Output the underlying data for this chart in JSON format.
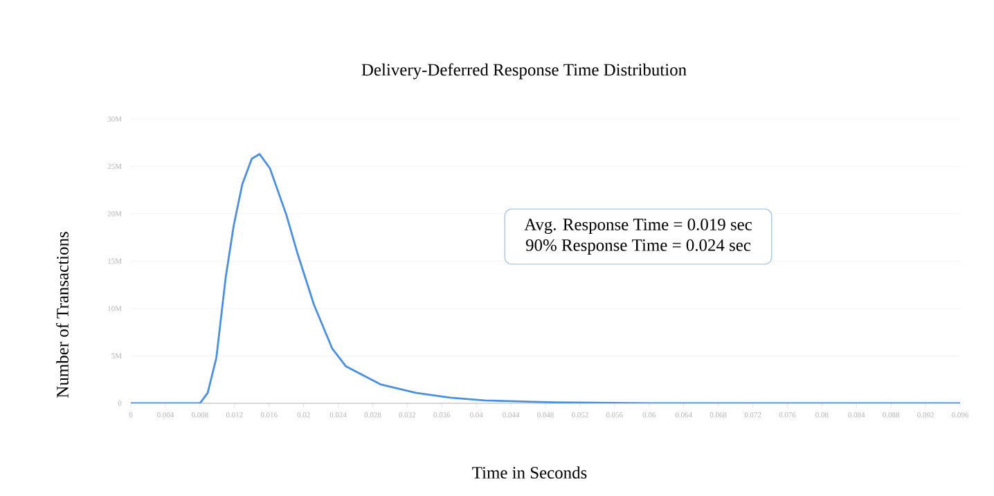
{
  "chart_data": {
    "type": "line",
    "title": "Delivery-Deferred Response Time Distribution",
    "xlabel": "Time in Seconds",
    "ylabel": "Number of Transactions",
    "annotations": [
      "Avg. Response Time = 0.019 sec",
      "90% Response Time = 0.024 sec"
    ],
    "x": [
      0,
      0.004,
      0.008,
      0.0089,
      0.0099,
      0.011,
      0.0119,
      0.0129,
      0.014,
      0.0149,
      0.0161,
      0.018,
      0.0193,
      0.0212,
      0.0233,
      0.0249,
      0.0289,
      0.033,
      0.037,
      0.041,
      0.049,
      0.06,
      0.08,
      0.096
    ],
    "series": [
      {
        "color": "#4a90e2",
        "values": [
          0,
          0,
          0,
          1100000,
          4800000,
          13400000,
          18700000,
          23100000,
          25800000,
          26300000,
          24800000,
          19900000,
          15800000,
          10400000,
          5800000,
          3900000,
          2000000,
          1100000,
          600000,
          300000,
          100000,
          0,
          0,
          0
        ]
      }
    ],
    "xlim": [
      0,
      0.096
    ],
    "ylim": [
      0,
      30000000
    ],
    "xticks": [
      0,
      0.004,
      0.008,
      0.012,
      0.016,
      0.02,
      0.024,
      0.028,
      0.032,
      0.036,
      0.04,
      0.044,
      0.048,
      0.052,
      0.056,
      0.06,
      0.064,
      0.068,
      0.072,
      0.076,
      0.08,
      0.084,
      0.088,
      0.092,
      0.096
    ],
    "yticks": [
      0,
      {
        "value": 5000000,
        "label": "5M"
      },
      {
        "value": 10000000,
        "label": "10M"
      },
      {
        "value": 15000000,
        "label": "15M"
      },
      {
        "value": 20000000,
        "label": "20M"
      },
      {
        "value": 25000000,
        "label": "25M"
      },
      {
        "value": 30000000,
        "label": "30M"
      }
    ],
    "grid": "y",
    "marker": "none",
    "line_style": "solid"
  }
}
